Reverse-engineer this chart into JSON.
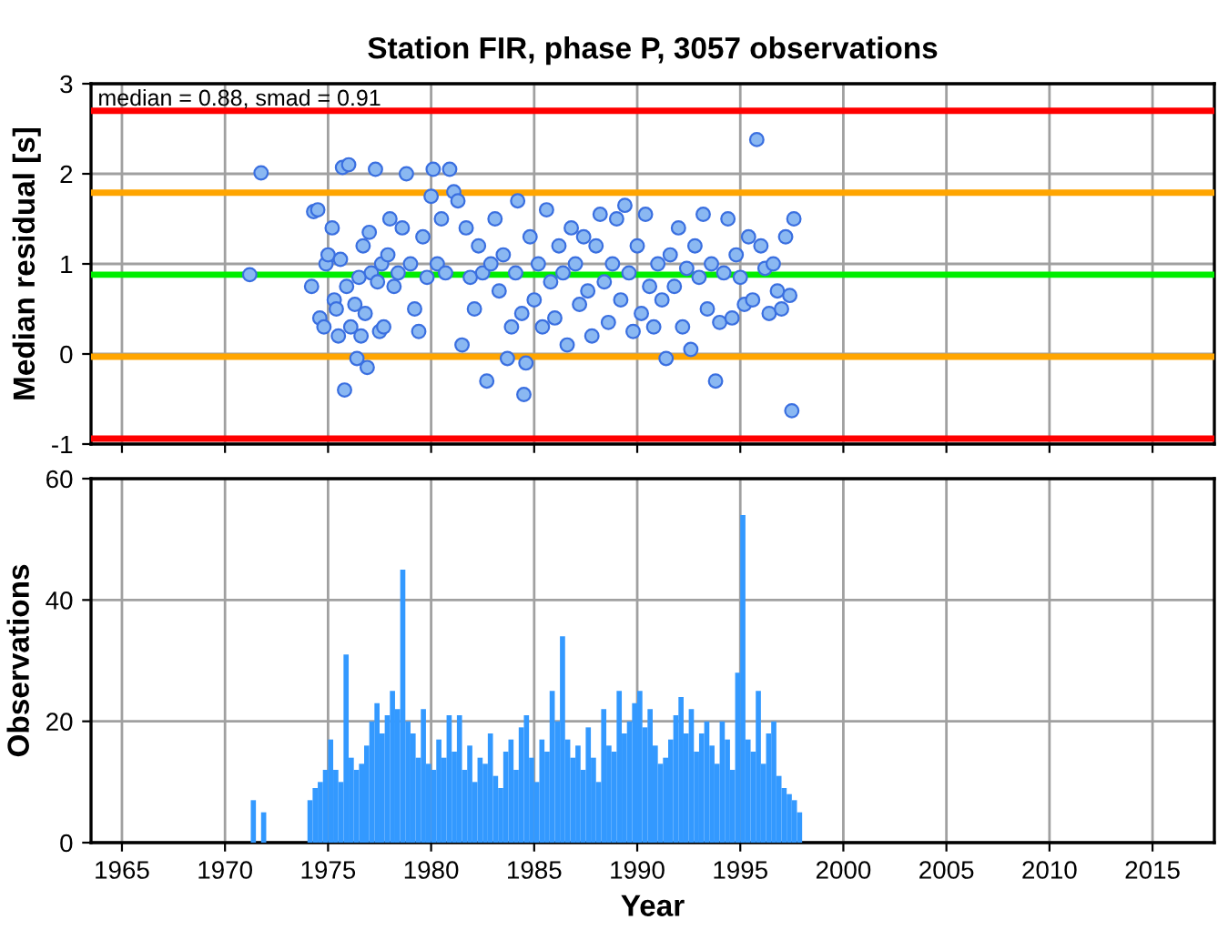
{
  "chart_data": [
    {
      "type": "scatter",
      "title": "Station FIR, phase P, 3057 observations",
      "ylabel": "Median residual [s]",
      "annotations": [
        "median = 0.88, smad = 0.91"
      ],
      "marker": "circle",
      "grid": true,
      "tick_labels": "y",
      "xlim": [
        1963.5,
        2018
      ],
      "xticks": [
        1965,
        1970,
        1975,
        1980,
        1985,
        1990,
        1995,
        2000,
        2005,
        2010,
        2015
      ],
      "ylim": [
        -1,
        3
      ],
      "yticks": [
        -1,
        0,
        1,
        2,
        3
      ],
      "ref_lines": [
        {
          "axis": "y",
          "value": 2.7,
          "color": "#ff0000"
        },
        {
          "axis": "y",
          "value": 1.79,
          "color": "#ffa500"
        },
        {
          "axis": "y",
          "value": 0.88,
          "color": "#00ee00"
        },
        {
          "axis": "y",
          "value": -0.03,
          "color": "#ffa500"
        },
        {
          "axis": "y",
          "value": -0.94,
          "color": "#ff0000"
        }
      ],
      "series": [
        {
          "color": "#8ab8f2",
          "x": [
            1971.2,
            1971.75,
            1974.2,
            1974.3,
            1974.5,
            1974.6,
            1974.8,
            1974.9,
            1975.0,
            1975.2,
            1975.3,
            1975.4,
            1975.5,
            1975.6,
            1975.7,
            1975.8,
            1975.9,
            1976.0,
            1976.1,
            1976.3,
            1976.4,
            1976.5,
            1976.6,
            1976.7,
            1976.8,
            1976.9,
            1977.0,
            1977.1,
            1977.3,
            1977.4,
            1977.5,
            1977.6,
            1977.7,
            1977.9,
            1978.0,
            1978.2,
            1978.4,
            1978.6,
            1978.8,
            1979.0,
            1979.2,
            1979.4,
            1979.6,
            1979.8,
            1980.0,
            1980.1,
            1980.3,
            1980.5,
            1980.7,
            1980.9,
            1981.1,
            1981.3,
            1981.5,
            1981.7,
            1981.9,
            1982.1,
            1982.3,
            1982.5,
            1982.7,
            1982.9,
            1983.1,
            1983.3,
            1983.5,
            1983.7,
            1983.9,
            1984.1,
            1984.2,
            1984.4,
            1984.5,
            1984.6,
            1984.8,
            1985.0,
            1985.2,
            1985.4,
            1985.6,
            1985.8,
            1986.0,
            1986.2,
            1986.4,
            1986.6,
            1986.8,
            1987.0,
            1987.2,
            1987.4,
            1987.6,
            1987.8,
            1988.0,
            1988.2,
            1988.4,
            1988.6,
            1988.8,
            1989.0,
            1989.2,
            1989.4,
            1989.6,
            1989.8,
            1990.0,
            1990.2,
            1990.4,
            1990.6,
            1990.8,
            1991.0,
            1991.2,
            1991.4,
            1991.6,
            1991.8,
            1992.0,
            1992.2,
            1992.4,
            1992.6,
            1992.8,
            1993.0,
            1993.2,
            1993.4,
            1993.6,
            1993.8,
            1994.0,
            1994.2,
            1994.4,
            1994.6,
            1994.8,
            1995.0,
            1995.2,
            1995.4,
            1995.6,
            1995.8,
            1996.0,
            1996.2,
            1996.4,
            1996.6,
            1996.8,
            1997.0,
            1997.2,
            1997.4,
            1997.5,
            1997.6
          ],
          "values": [
            0.88,
            2.01,
            0.75,
            1.58,
            1.6,
            0.4,
            0.3,
            1.0,
            1.1,
            1.4,
            0.6,
            0.5,
            0.2,
            1.05,
            2.07,
            -0.4,
            0.75,
            2.1,
            0.3,
            0.55,
            -0.05,
            0.85,
            0.2,
            1.2,
            0.45,
            -0.15,
            1.35,
            0.9,
            2.05,
            0.8,
            0.25,
            1.0,
            0.3,
            1.1,
            1.5,
            0.75,
            0.9,
            1.4,
            2.0,
            1.0,
            0.5,
            0.25,
            1.3,
            0.85,
            1.75,
            2.05,
            1.0,
            1.5,
            0.9,
            2.05,
            1.8,
            1.7,
            0.1,
            1.4,
            0.85,
            0.5,
            1.2,
            0.9,
            -0.3,
            1.0,
            1.5,
            0.7,
            1.1,
            -0.05,
            0.3,
            0.9,
            1.7,
            0.45,
            -0.45,
            -0.1,
            1.3,
            0.6,
            1.0,
            0.3,
            1.6,
            0.8,
            0.4,
            1.2,
            0.9,
            0.1,
            1.4,
            1.0,
            0.55,
            1.3,
            0.7,
            0.2,
            1.2,
            1.55,
            0.8,
            0.35,
            1.0,
            1.5,
            0.6,
            1.65,
            0.9,
            0.25,
            1.2,
            0.45,
            1.55,
            0.75,
            0.3,
            1.0,
            0.6,
            -0.05,
            1.1,
            0.75,
            1.4,
            0.3,
            0.95,
            0.05,
            1.2,
            0.85,
            1.55,
            0.5,
            1.0,
            -0.3,
            0.35,
            0.9,
            1.5,
            0.4,
            1.1,
            0.85,
            0.55,
            1.3,
            0.6,
            2.38,
            1.2,
            0.95,
            0.45,
            1.0,
            0.7,
            0.5,
            1.3,
            0.65,
            -0.63,
            1.5
          ]
        }
      ]
    },
    {
      "type": "histogram",
      "xlabel": "Year",
      "ylabel": "Observations",
      "color": "#3399ff",
      "grid": true,
      "xlim": [
        1963.5,
        2018
      ],
      "xticks": [
        1965,
        1970,
        1975,
        1980,
        1985,
        1990,
        1995,
        2000,
        2005,
        2010,
        2015
      ],
      "ylim": [
        0,
        60
      ],
      "yticks": [
        0,
        20,
        40,
        60
      ],
      "bins": [
        1971.0,
        1971.25,
        1971.5,
        1971.75,
        1972.0,
        1972.25,
        1972.5,
        1972.75,
        1973.0,
        1973.25,
        1973.5,
        1973.75,
        1974.0,
        1974.25,
        1974.5,
        1974.75,
        1975.0,
        1975.25,
        1975.5,
        1975.75,
        1976.0,
        1976.25,
        1976.5,
        1976.75,
        1977.0,
        1977.25,
        1977.5,
        1977.75,
        1978.0,
        1978.25,
        1978.5,
        1978.75,
        1979.0,
        1979.25,
        1979.5,
        1979.75,
        1980.0,
        1980.25,
        1980.5,
        1980.75,
        1981.0,
        1981.25,
        1981.5,
        1981.75,
        1982.0,
        1982.25,
        1982.5,
        1982.75,
        1983.0,
        1983.25,
        1983.5,
        1983.75,
        1984.0,
        1984.25,
        1984.5,
        1984.75,
        1985.0,
        1985.25,
        1985.5,
        1985.75,
        1986.0,
        1986.25,
        1986.5,
        1986.75,
        1987.0,
        1987.25,
        1987.5,
        1987.75,
        1988.0,
        1988.25,
        1988.5,
        1988.75,
        1989.0,
        1989.25,
        1989.5,
        1989.75,
        1990.0,
        1990.25,
        1990.5,
        1990.75,
        1991.0,
        1991.25,
        1991.5,
        1991.75,
        1992.0,
        1992.25,
        1992.5,
        1992.75,
        1993.0,
        1993.25,
        1993.5,
        1993.75,
        1994.0,
        1994.25,
        1994.5,
        1994.75,
        1995.0,
        1995.25,
        1995.5,
        1995.75,
        1996.0,
        1996.25,
        1996.5,
        1996.75,
        1997.0,
        1997.25,
        1997.5,
        1997.75,
        1998.0
      ],
      "values": [
        0,
        7,
        0,
        5,
        0,
        0,
        0,
        0,
        0,
        0,
        0,
        0,
        7,
        9,
        10,
        12,
        17,
        12,
        10,
        31,
        14,
        12,
        13,
        16,
        20,
        23,
        18,
        21,
        25,
        22,
        45,
        20,
        18,
        14,
        22,
        13,
        12,
        17,
        14,
        21,
        15,
        21,
        12,
        16,
        10,
        14,
        13,
        18,
        11,
        9,
        15,
        17,
        12,
        19,
        21,
        14,
        10,
        17,
        15,
        25,
        20,
        34,
        17,
        14,
        16,
        12,
        19,
        14,
        10,
        22,
        16,
        15,
        25,
        18,
        20,
        23,
        25,
        19,
        22,
        16,
        13,
        14,
        17,
        21,
        24,
        18,
        22,
        15,
        18,
        20,
        16,
        13,
        20,
        17,
        12,
        28,
        54,
        17,
        15,
        25,
        13,
        18,
        20,
        11,
        9,
        8,
        7,
        5
      ]
    }
  ]
}
